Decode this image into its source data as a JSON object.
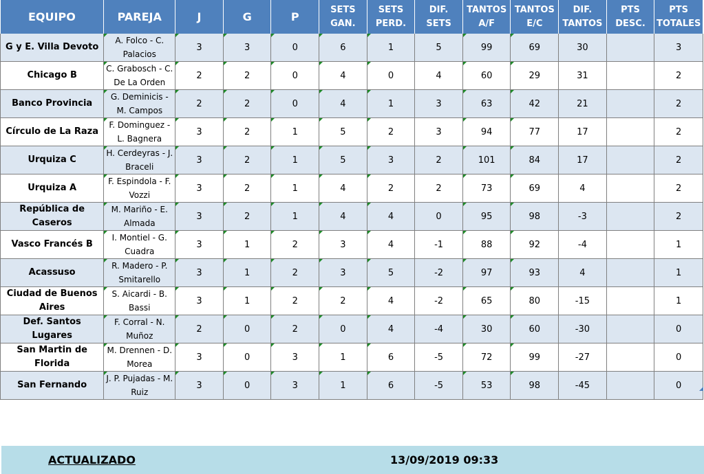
{
  "headers": [
    {
      "label": "EQUIPO",
      "big": true
    },
    {
      "label": "PAREJA",
      "big": true
    },
    {
      "label": "J",
      "big": true
    },
    {
      "label": "G",
      "big": true
    },
    {
      "label": "P",
      "big": true
    },
    {
      "label": "SETS\nGAN.",
      "big": false
    },
    {
      "label": "SETS\nPERD.",
      "big": false
    },
    {
      "label": "DIF. SETS",
      "big": false
    },
    {
      "label": "TANTOS\nA/F",
      "big": false
    },
    {
      "label": "TANTOS\nE/C",
      "big": false
    },
    {
      "label": "DIF.\nTANTOS",
      "big": false
    },
    {
      "label": "PTS\nDESC.",
      "big": false
    },
    {
      "label": "PTS\nTOTALES",
      "big": false
    }
  ],
  "rows": [
    {
      "team": "G y E. Villa Devoto",
      "pair": "A. Folco - C. Palacios",
      "j": "3",
      "g": "3",
      "p": "0",
      "sets_gan": "6",
      "sets_perd": "1",
      "dif_sets": "5",
      "tantos_af": "99",
      "tantos_ec": "69",
      "dif_tantos": "30",
      "pts_desc": "",
      "pts_totales": "3"
    },
    {
      "team": "Chicago B",
      "pair": "C. Grabosch - C. De La Orden",
      "j": "2",
      "g": "2",
      "p": "0",
      "sets_gan": "4",
      "sets_perd": "0",
      "dif_sets": "4",
      "tantos_af": "60",
      "tantos_ec": "29",
      "dif_tantos": "31",
      "pts_desc": "",
      "pts_totales": "2"
    },
    {
      "team": "Banco Provincia",
      "pair": "G. Deminicis - M. Campos",
      "j": "2",
      "g": "2",
      "p": "0",
      "sets_gan": "4",
      "sets_perd": "1",
      "dif_sets": "3",
      "tantos_af": "63",
      "tantos_ec": "42",
      "dif_tantos": "21",
      "pts_desc": "",
      "pts_totales": "2"
    },
    {
      "team": "Círculo de La Raza",
      "pair": "F. Dominguez - L. Bagnera",
      "j": "3",
      "g": "2",
      "p": "1",
      "sets_gan": "5",
      "sets_perd": "2",
      "dif_sets": "3",
      "tantos_af": "94",
      "tantos_ec": "77",
      "dif_tantos": "17",
      "pts_desc": "",
      "pts_totales": "2"
    },
    {
      "team": "Urquiza C",
      "pair": "H. Cerdeyras - J. Braceli",
      "j": "3",
      "g": "2",
      "p": "1",
      "sets_gan": "5",
      "sets_perd": "3",
      "dif_sets": "2",
      "tantos_af": "101",
      "tantos_ec": "84",
      "dif_tantos": "17",
      "pts_desc": "",
      "pts_totales": "2"
    },
    {
      "team": "Urquiza A",
      "pair": "F. Espindola - F. Vozzi",
      "j": "3",
      "g": "2",
      "p": "1",
      "sets_gan": "4",
      "sets_perd": "2",
      "dif_sets": "2",
      "tantos_af": "73",
      "tantos_ec": "69",
      "dif_tantos": "4",
      "pts_desc": "",
      "pts_totales": "2"
    },
    {
      "team": "República de Caseros",
      "pair": "M. Mariño - E. Almada",
      "j": "3",
      "g": "2",
      "p": "1",
      "sets_gan": "4",
      "sets_perd": "4",
      "dif_sets": "0",
      "tantos_af": "95",
      "tantos_ec": "98",
      "dif_tantos": "-3",
      "pts_desc": "",
      "pts_totales": "2"
    },
    {
      "team": "Vasco Francés B",
      "pair": "I. Montiel - G. Cuadra",
      "j": "3",
      "g": "1",
      "p": "2",
      "sets_gan": "3",
      "sets_perd": "4",
      "dif_sets": "-1",
      "tantos_af": "88",
      "tantos_ec": "92",
      "dif_tantos": "-4",
      "pts_desc": "",
      "pts_totales": "1"
    },
    {
      "team": "Acassuso",
      "pair": "R. Madero - P. Smitarello",
      "j": "3",
      "g": "1",
      "p": "2",
      "sets_gan": "3",
      "sets_perd": "5",
      "dif_sets": "-2",
      "tantos_af": "97",
      "tantos_ec": "93",
      "dif_tantos": "4",
      "pts_desc": "",
      "pts_totales": "1"
    },
    {
      "team": "Ciudad de Buenos Aires",
      "pair": "S. Aicardi - B. Bassi",
      "j": "3",
      "g": "1",
      "p": "2",
      "sets_gan": "2",
      "sets_perd": "4",
      "dif_sets": "-2",
      "tantos_af": "65",
      "tantos_ec": "80",
      "dif_tantos": "-15",
      "pts_desc": "",
      "pts_totales": "1"
    },
    {
      "team": "Def. Santos Lugares",
      "pair": "F. Corral - N. Muñoz",
      "j": "2",
      "g": "0",
      "p": "2",
      "sets_gan": "0",
      "sets_perd": "4",
      "dif_sets": "-4",
      "tantos_af": "30",
      "tantos_ec": "60",
      "dif_tantos": "-30",
      "pts_desc": "",
      "pts_totales": "0"
    },
    {
      "team": "San Martin de Florida",
      "pair": "M. Drennen - D. Morea",
      "j": "3",
      "g": "0",
      "p": "3",
      "sets_gan": "1",
      "sets_perd": "6",
      "dif_sets": "-5",
      "tantos_af": "72",
      "tantos_ec": "99",
      "dif_tantos": "-27",
      "pts_desc": "",
      "pts_totales": "0"
    },
    {
      "team": "San Fernando",
      "pair": "J. P. Pujadas - M. Ruiz",
      "j": "3",
      "g": "0",
      "p": "3",
      "sets_gan": "1",
      "sets_perd": "6",
      "dif_sets": "-5",
      "tantos_af": "53",
      "tantos_ec": "98",
      "dif_tantos": "-45",
      "pts_desc": "",
      "pts_totales": "0"
    }
  ],
  "footer": {
    "label": "ACTUALIZADO",
    "timestamp": "13/09/2019 09:33"
  },
  "colors": {
    "header_bg": "#4f81bd",
    "band_row": "#dce6f1",
    "footer_bg": "#b7dde8",
    "cell_marker": "#1e8b28"
  }
}
